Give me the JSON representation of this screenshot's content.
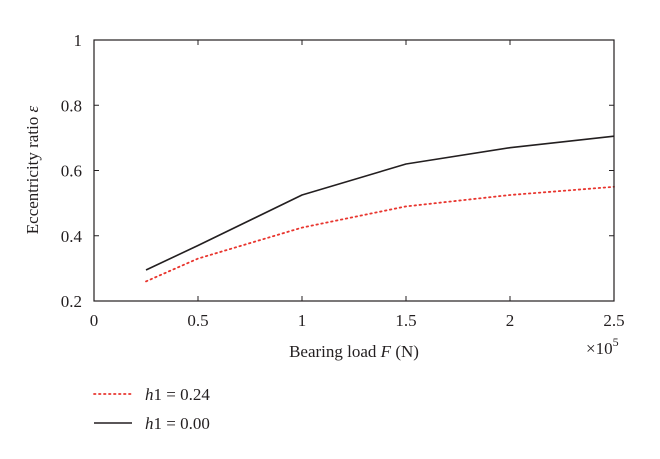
{
  "chart_data": {
    "type": "line",
    "xlabel": {
      "prefix": "Bearing load ",
      "var": "F",
      "suffix": " (N)"
    },
    "ylabel": {
      "prefix": "Eccentricity ratio ",
      "var": "ε"
    },
    "x_multiplier": {
      "base": "×10",
      "exp": "5"
    },
    "xlim": [
      0,
      2.5
    ],
    "ylim": [
      0.2,
      1.0
    ],
    "x_ticks": [
      0,
      0.5,
      1,
      1.5,
      2,
      2.5
    ],
    "x_tick_labels": [
      "0",
      "0.5",
      "1",
      "1.5",
      "2",
      "2.5"
    ],
    "y_ticks": [
      0.2,
      0.4,
      0.6,
      0.8,
      1.0
    ],
    "y_tick_labels": [
      "0.2",
      "0.4",
      "0.6",
      "0.8",
      "1"
    ],
    "grid": false,
    "legend_position": "bottom-left, below plot",
    "series": [
      {
        "name": "h1 = 0.24",
        "legend": {
          "var": "h",
          "rest": "1 = 0.24"
        },
        "color": "#e8352e",
        "style": "dotted",
        "x": [
          0.25,
          0.5,
          1.0,
          1.5,
          2.0,
          2.5
        ],
        "y": [
          0.26,
          0.33,
          0.425,
          0.49,
          0.525,
          0.55
        ]
      },
      {
        "name": "h1 = 0.00",
        "legend": {
          "var": "h",
          "rest": "1 = 0.00"
        },
        "color": "#231f20",
        "style": "solid",
        "x": [
          0.25,
          0.5,
          1.0,
          1.5,
          2.0,
          2.5
        ],
        "y": [
          0.295,
          0.37,
          0.525,
          0.62,
          0.67,
          0.705
        ]
      }
    ]
  }
}
